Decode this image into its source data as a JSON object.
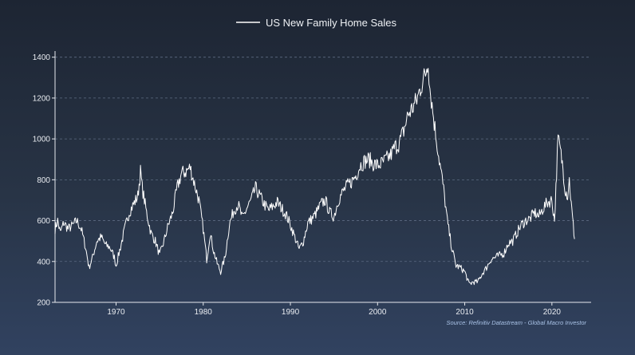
{
  "chart_data": {
    "type": "line",
    "title": "",
    "xlabel": "",
    "ylabel": "",
    "series": [
      {
        "name": "US New Family Home Sales",
        "color": "#ffffff",
        "points": [
          [
            1963.0,
            560
          ],
          [
            1963.3,
            600
          ],
          [
            1963.6,
            540
          ],
          [
            1964.0,
            590
          ],
          [
            1964.5,
            560
          ],
          [
            1965.0,
            575
          ],
          [
            1965.5,
            600
          ],
          [
            1966.0,
            560
          ],
          [
            1966.5,
            470
          ],
          [
            1966.9,
            370
          ],
          [
            1967.3,
            420
          ],
          [
            1967.8,
            500
          ],
          [
            1968.3,
            520
          ],
          [
            1968.8,
            480
          ],
          [
            1969.3,
            470
          ],
          [
            1969.8,
            420
          ],
          [
            1970.0,
            380
          ],
          [
            1970.5,
            470
          ],
          [
            1971.0,
            560
          ],
          [
            1971.5,
            640
          ],
          [
            1972.0,
            680
          ],
          [
            1972.5,
            720
          ],
          [
            1972.8,
            840
          ],
          [
            1973.0,
            760
          ],
          [
            1973.5,
            640
          ],
          [
            1974.0,
            540
          ],
          [
            1974.5,
            500
          ],
          [
            1975.0,
            430
          ],
          [
            1975.5,
            500
          ],
          [
            1976.0,
            580
          ],
          [
            1976.5,
            640
          ],
          [
            1977.0,
            760
          ],
          [
            1977.5,
            830
          ],
          [
            1978.0,
            840
          ],
          [
            1978.5,
            860
          ],
          [
            1979.0,
            780
          ],
          [
            1979.5,
            700
          ],
          [
            1980.0,
            560
          ],
          [
            1980.4,
            410
          ],
          [
            1980.8,
            540
          ],
          [
            1981.2,
            450
          ],
          [
            1981.6,
            390
          ],
          [
            1982.0,
            350
          ],
          [
            1982.5,
            420
          ],
          [
            1983.0,
            580
          ],
          [
            1983.5,
            650
          ],
          [
            1984.0,
            680
          ],
          [
            1984.5,
            610
          ],
          [
            1985.0,
            660
          ],
          [
            1985.5,
            700
          ],
          [
            1986.0,
            760
          ],
          [
            1986.5,
            720
          ],
          [
            1987.0,
            680
          ],
          [
            1987.5,
            650
          ],
          [
            1988.0,
            670
          ],
          [
            1988.5,
            690
          ],
          [
            1989.0,
            660
          ],
          [
            1989.5,
            630
          ],
          [
            1990.0,
            580
          ],
          [
            1990.5,
            520
          ],
          [
            1991.0,
            460
          ],
          [
            1991.5,
            500
          ],
          [
            1992.0,
            590
          ],
          [
            1992.5,
            610
          ],
          [
            1993.0,
            640
          ],
          [
            1993.5,
            680
          ],
          [
            1994.0,
            700
          ],
          [
            1994.5,
            640
          ],
          [
            1995.0,
            620
          ],
          [
            1995.5,
            700
          ],
          [
            1996.0,
            740
          ],
          [
            1996.5,
            770
          ],
          [
            1997.0,
            790
          ],
          [
            1997.5,
            820
          ],
          [
            1998.0,
            870
          ],
          [
            1998.5,
            890
          ],
          [
            1999.0,
            900
          ],
          [
            1999.5,
            880
          ],
          [
            2000.0,
            870
          ],
          [
            2000.5,
            880
          ],
          [
            2001.0,
            900
          ],
          [
            2001.5,
            920
          ],
          [
            2002.0,
            960
          ],
          [
            2002.5,
            980
          ],
          [
            2003.0,
            1040
          ],
          [
            2003.5,
            1120
          ],
          [
            2004.0,
            1150
          ],
          [
            2004.5,
            1190
          ],
          [
            2005.0,
            1260
          ],
          [
            2005.5,
            1320
          ],
          [
            2005.8,
            1389
          ],
          [
            2006.0,
            1250
          ],
          [
            2006.5,
            1080
          ],
          [
            2007.0,
            920
          ],
          [
            2007.5,
            780
          ],
          [
            2008.0,
            600
          ],
          [
            2008.5,
            470
          ],
          [
            2009.0,
            380
          ],
          [
            2009.5,
            370
          ],
          [
            2010.0,
            350
          ],
          [
            2010.5,
            290
          ],
          [
            2011.0,
            300
          ],
          [
            2011.5,
            300
          ],
          [
            2012.0,
            340
          ],
          [
            2012.5,
            370
          ],
          [
            2013.0,
            410
          ],
          [
            2013.5,
            420
          ],
          [
            2014.0,
            430
          ],
          [
            2014.5,
            440
          ],
          [
            2015.0,
            490
          ],
          [
            2015.5,
            500
          ],
          [
            2016.0,
            540
          ],
          [
            2016.5,
            580
          ],
          [
            2017.0,
            600
          ],
          [
            2017.5,
            610
          ],
          [
            2018.0,
            640
          ],
          [
            2018.5,
            620
          ],
          [
            2019.0,
            660
          ],
          [
            2019.5,
            690
          ],
          [
            2020.0,
            700
          ],
          [
            2020.3,
            600
          ],
          [
            2020.7,
            1000
          ],
          [
            2020.9,
            960
          ],
          [
            2021.2,
            880
          ],
          [
            2021.5,
            760
          ],
          [
            2021.8,
            720
          ],
          [
            2022.0,
            800
          ],
          [
            2022.3,
            640
          ],
          [
            2022.6,
            510
          ]
        ]
      }
    ],
    "xlim": [
      1963,
      2024.5
    ],
    "ylim": [
      200,
      1430
    ],
    "x_ticks": [
      1970,
      1980,
      1990,
      2000,
      2010,
      2020
    ],
    "y_ticks": [
      200,
      400,
      600,
      800,
      1000,
      1200,
      1400
    ],
    "grid": "horizontal dashed",
    "legend_position": "top-center",
    "annotation": "Source: Refinitiv Datastream - Global Macro Investor"
  }
}
